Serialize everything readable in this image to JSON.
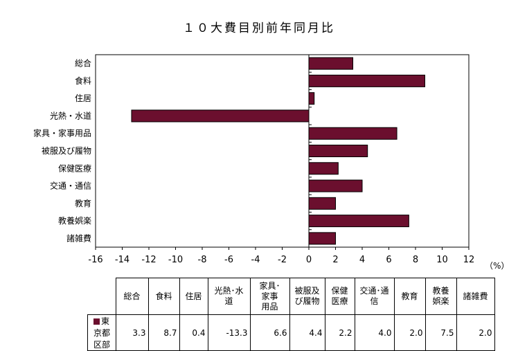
{
  "chart_data": {
    "type": "bar",
    "orientation": "horizontal",
    "title": "１０大費目別前年同月比",
    "unit_label": "（%）",
    "categories": [
      "総合",
      "食料",
      "住居",
      "光熱・水道",
      "家具・家事用品",
      "被服及び履物",
      "保健医療",
      "交通・通信",
      "教育",
      "教養娯楽",
      "諸雑費"
    ],
    "series": [
      {
        "name": "東京都区部",
        "values": [
          3.3,
          8.7,
          0.4,
          -13.3,
          6.6,
          4.4,
          2.2,
          4.0,
          2.0,
          7.5,
          2.0
        ],
        "color": "#6b0f2e"
      }
    ],
    "xlim": [
      -16,
      12
    ],
    "xticks": [
      -16,
      -14,
      -12,
      -10,
      -8,
      -6,
      -4,
      -2,
      0,
      2,
      4,
      6,
      8,
      10,
      12
    ],
    "grid": false,
    "legend": "none"
  },
  "table": {
    "headers": [
      "総合",
      "食料",
      "住居",
      "光熱･水道",
      "家具･家事用品",
      "被服及び履物",
      "保健医療",
      "交通･通信",
      "教育",
      "教養娯楽",
      "諸雑費"
    ],
    "header_lines": [
      [
        "総合"
      ],
      [
        "食料"
      ],
      [
        "住居"
      ],
      [
        "光熱･水",
        "道"
      ],
      [
        "家具･",
        "家事",
        "用品"
      ],
      [
        "被服及",
        "び履物"
      ],
      [
        "保健",
        "医療"
      ],
      [
        "交通･通",
        "信"
      ],
      [
        "教育"
      ],
      [
        "教養",
        "娯楽"
      ],
      [
        "諸雑費"
      ]
    ],
    "row_label": "東京都区部",
    "row_values": [
      "3.3",
      "8.7",
      "0.4",
      "-13.3",
      "6.6",
      "4.4",
      "2.2",
      "4.0",
      "2.0",
      "7.5",
      "2.0"
    ]
  }
}
